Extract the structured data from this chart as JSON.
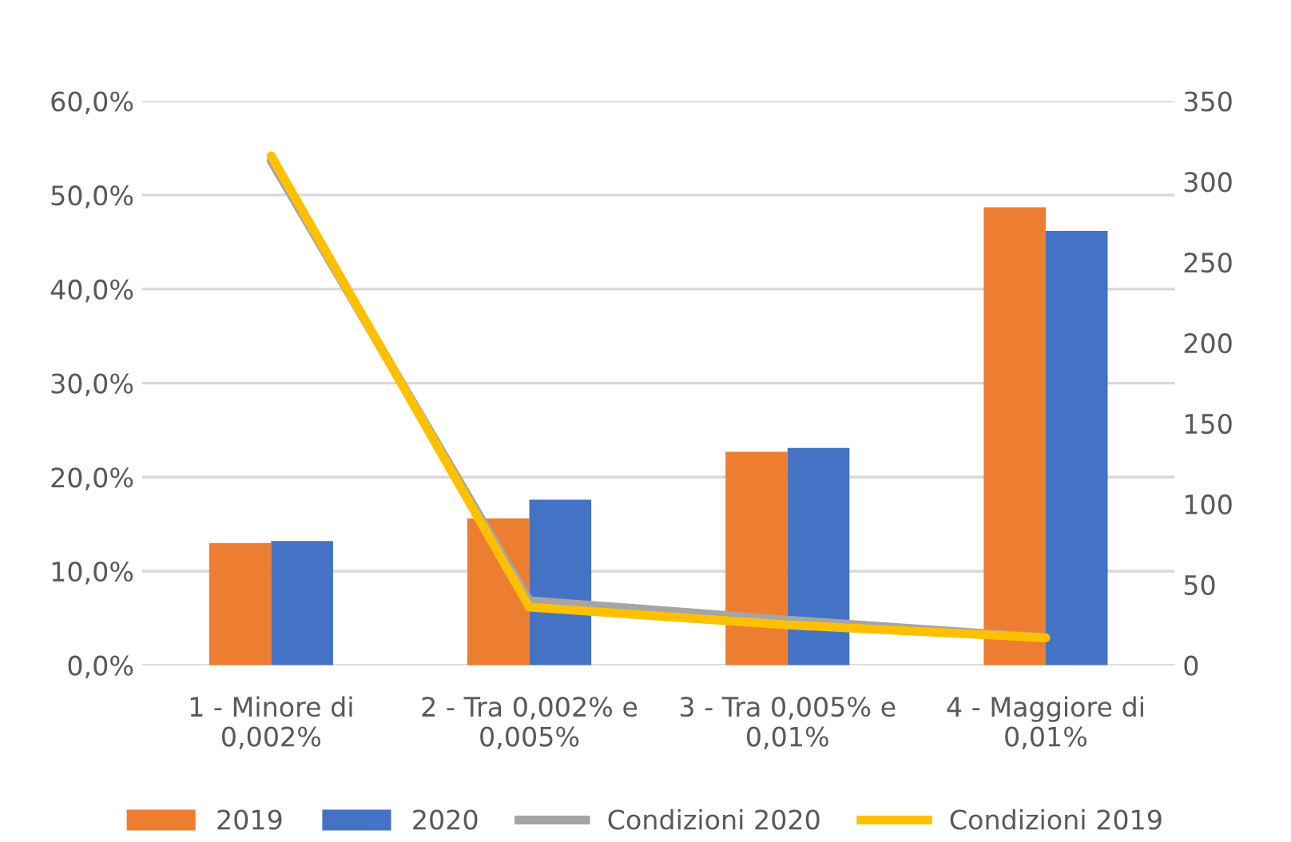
{
  "chart_data": {
    "type": "bar",
    "categories": [
      "1 - Minore di\n0,002%",
      "2 - Tra 0,002% e\n0,005%",
      "3 - Tra 0,005% e\n0,01%",
      "4 - Maggiore di\n0,01%"
    ],
    "series": [
      {
        "name": "2019",
        "color": "#ed7d31",
        "values": [
          13.0,
          15.6,
          22.7,
          48.7
        ]
      },
      {
        "name": "2020",
        "color": "#4472c4",
        "values": [
          13.2,
          17.6,
          23.1,
          46.2
        ]
      },
      {
        "name": "Condizioni 2020",
        "type": "line",
        "axis": "y2",
        "color": "#a5a5a5",
        "values": [
          313,
          40,
          28,
          17
        ]
      },
      {
        "name": "Condizioni 2019",
        "type": "line",
        "axis": "y2",
        "color": "#ffc000",
        "values": [
          316,
          36,
          25,
          17
        ]
      }
    ],
    "ylim": [
      0,
      60
    ],
    "yticks": [
      {
        "value": 0,
        "label": "0,0%"
      },
      {
        "value": 10,
        "label": "10,0%"
      },
      {
        "value": 20,
        "label": "20,0%"
      },
      {
        "value": 30,
        "label": "30,0%"
      },
      {
        "value": 40,
        "label": "40,0%"
      },
      {
        "value": 50,
        "label": "50,0%"
      },
      {
        "value": 60,
        "label": "60,0%"
      }
    ],
    "y2lim": [
      0,
      350
    ],
    "y2ticks": [
      0,
      50,
      100,
      150,
      200,
      250,
      300,
      350
    ],
    "grid": "y",
    "legend": "bottom",
    "marker": "none",
    "line_style": "solid"
  }
}
